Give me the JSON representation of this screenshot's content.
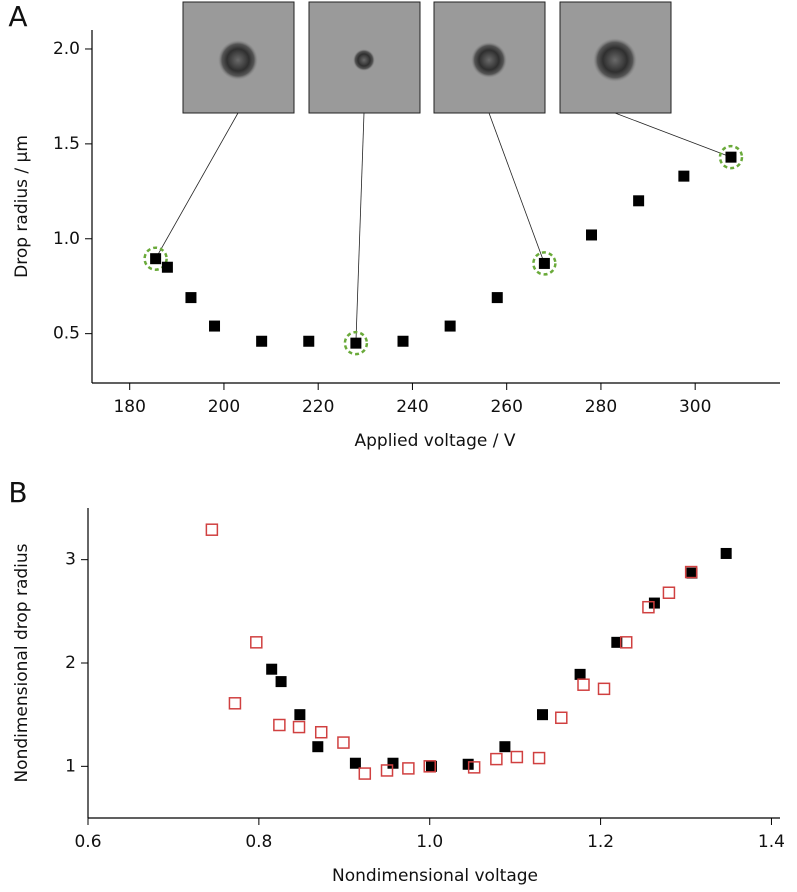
{
  "chart_data": [
    {
      "type": "scatter",
      "panel_label": "A",
      "xlabel": "Applied voltage / V",
      "ylabel": "Drop radius / µm",
      "xlim": [
        172,
        318
      ],
      "ylim": [
        0.24,
        2.1
      ],
      "xticks": [
        180,
        200,
        220,
        240,
        260,
        280,
        300
      ],
      "yticks": [
        0.5,
        {
          "value": 1,
          "label": "1.0"
        },
        1.5,
        {
          "value": 2,
          "label": "2.0"
        }
      ],
      "highlighted_points": [
        0,
        6,
        10,
        14
      ],
      "highlight_color": "#6aaa3a",
      "series": [
        {
          "color": "#000000",
          "marker": "filled-square",
          "x": [
            185.5,
            188,
            193,
            198,
            208,
            218,
            228,
            238,
            248,
            258,
            268,
            278,
            288,
            297.6,
            307.6
          ],
          "values": [
            0.895,
            0.85,
            0.69,
            0.54,
            0.46,
            0.46,
            0.45,
            0.46,
            0.54,
            0.69,
            0.87,
            1.02,
            1.2,
            1.33,
            1.43
          ]
        }
      ]
    },
    {
      "type": "scatter",
      "panel_label": "B",
      "xlabel": "Nondimensional voltage",
      "ylabel": "Nondimensional drop radius",
      "xlim": [
        0.6,
        1.41
      ],
      "ylim": [
        0.5,
        3.5
      ],
      "xticks": [
        0.6,
        0.8,
        {
          "value": 1,
          "label": "1.0"
        },
        1.2,
        1.4
      ],
      "yticks": [
        1,
        2,
        3
      ],
      "series": [
        {
          "color": "#000000",
          "marker": "filled-square",
          "x": [
            0.815,
            0.826,
            0.848,
            0.869,
            0.913,
            0.957,
            1.002,
            1.045,
            1.088,
            1.132,
            1.176,
            1.219,
            1.263,
            1.307,
            1.347
          ],
          "values": [
            1.94,
            1.82,
            1.5,
            1.19,
            1.03,
            1.03,
            1.0,
            1.02,
            1.19,
            1.5,
            1.89,
            2.2,
            2.58,
            2.87,
            3.06
          ]
        },
        {
          "color": "#d04040",
          "marker": "open-square",
          "x": [
            0.745,
            0.772,
            0.797,
            0.824,
            0.847,
            0.873,
            0.899,
            0.924,
            0.95,
            0.975,
            1.0,
            1.052,
            1.078,
            1.102,
            1.128,
            1.154,
            1.18,
            1.204,
            1.23,
            1.256,
            1.28,
            1.306
          ],
          "values": [
            3.29,
            1.61,
            2.2,
            1.4,
            1.38,
            1.33,
            1.23,
            0.93,
            0.96,
            0.98,
            1.0,
            0.99,
            1.07,
            1.09,
            1.08,
            1.47,
            1.79,
            1.75,
            2.2,
            2.54,
            2.68,
            2.88
          ]
        }
      ]
    }
  ]
}
